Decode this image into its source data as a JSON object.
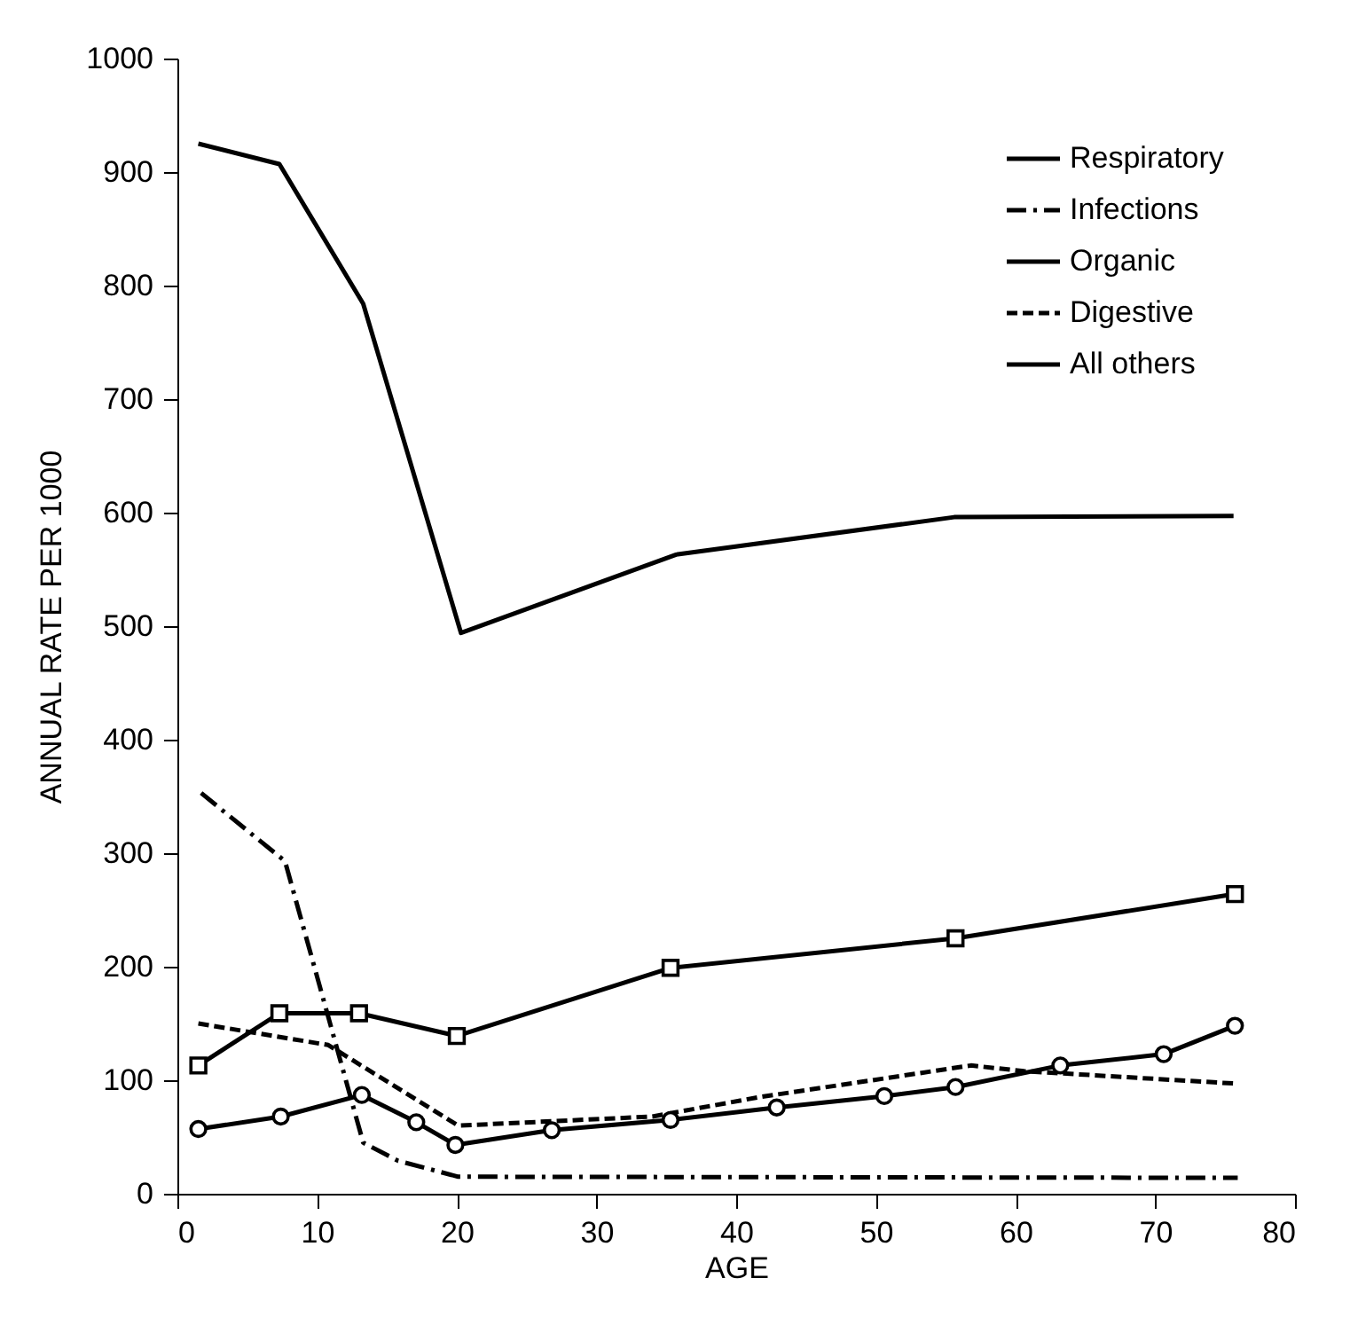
{
  "chart_data": {
    "type": "line",
    "xlabel": "AGE",
    "ylabel": "ANNUAL RATE PER 1000",
    "xlim": [
      0,
      80
    ],
    "xticks": [
      0,
      10,
      20,
      30,
      40,
      50,
      60,
      70,
      80
    ],
    "ylim": [
      0,
      1000
    ],
    "yticks": [
      0,
      100,
      200,
      300,
      400,
      500,
      600,
      700,
      800,
      900,
      1000
    ],
    "grid": false,
    "legend": "top right",
    "series": [
      {
        "name": "Respiratory",
        "color": "#000000",
        "line_style": "solid",
        "marker": "none",
        "x": [
          1.5,
          7.3,
          13.3,
          20.3,
          35.7,
          55.6,
          75.6
        ],
        "values": [
          925,
          907,
          784,
          494,
          563,
          596,
          597
        ]
      },
      {
        "name": "Infections",
        "color": "#000000",
        "line_style": "dashdot",
        "marker": "none",
        "x": [
          1.7,
          7.7,
          13.3,
          15.8,
          20.1,
          75.9
        ],
        "values": [
          353,
          293,
          45,
          29,
          15,
          14
        ]
      },
      {
        "name": "Organic",
        "color": "#000000",
        "line_style": "solid",
        "marker": "circle",
        "x": [
          1.5,
          7.4,
          13.2,
          17.1,
          19.9,
          26.8,
          35.3,
          42.9,
          50.6,
          55.7,
          63.2,
          70.6,
          75.7
        ],
        "values": [
          57,
          68,
          87,
          63,
          43,
          56,
          65,
          76,
          86,
          94,
          113,
          123,
          148
        ]
      },
      {
        "name": "Digestive",
        "color": "#000000",
        "line_style": "dashed",
        "marker": "none",
        "x": [
          1.5,
          10.8,
          20.1,
          34,
          41.6,
          56.8,
          60.6,
          75.8
        ],
        "values": [
          150,
          131,
          60,
          68,
          85,
          113,
          108,
          97
        ]
      },
      {
        "name": "All others",
        "color": "#000000",
        "line_style": "solid",
        "marker": "square",
        "x": [
          1.5,
          7.3,
          13,
          20,
          35.3,
          55.7,
          75.7
        ],
        "values": [
          113,
          159,
          159,
          139,
          199,
          225,
          264
        ]
      }
    ]
  }
}
